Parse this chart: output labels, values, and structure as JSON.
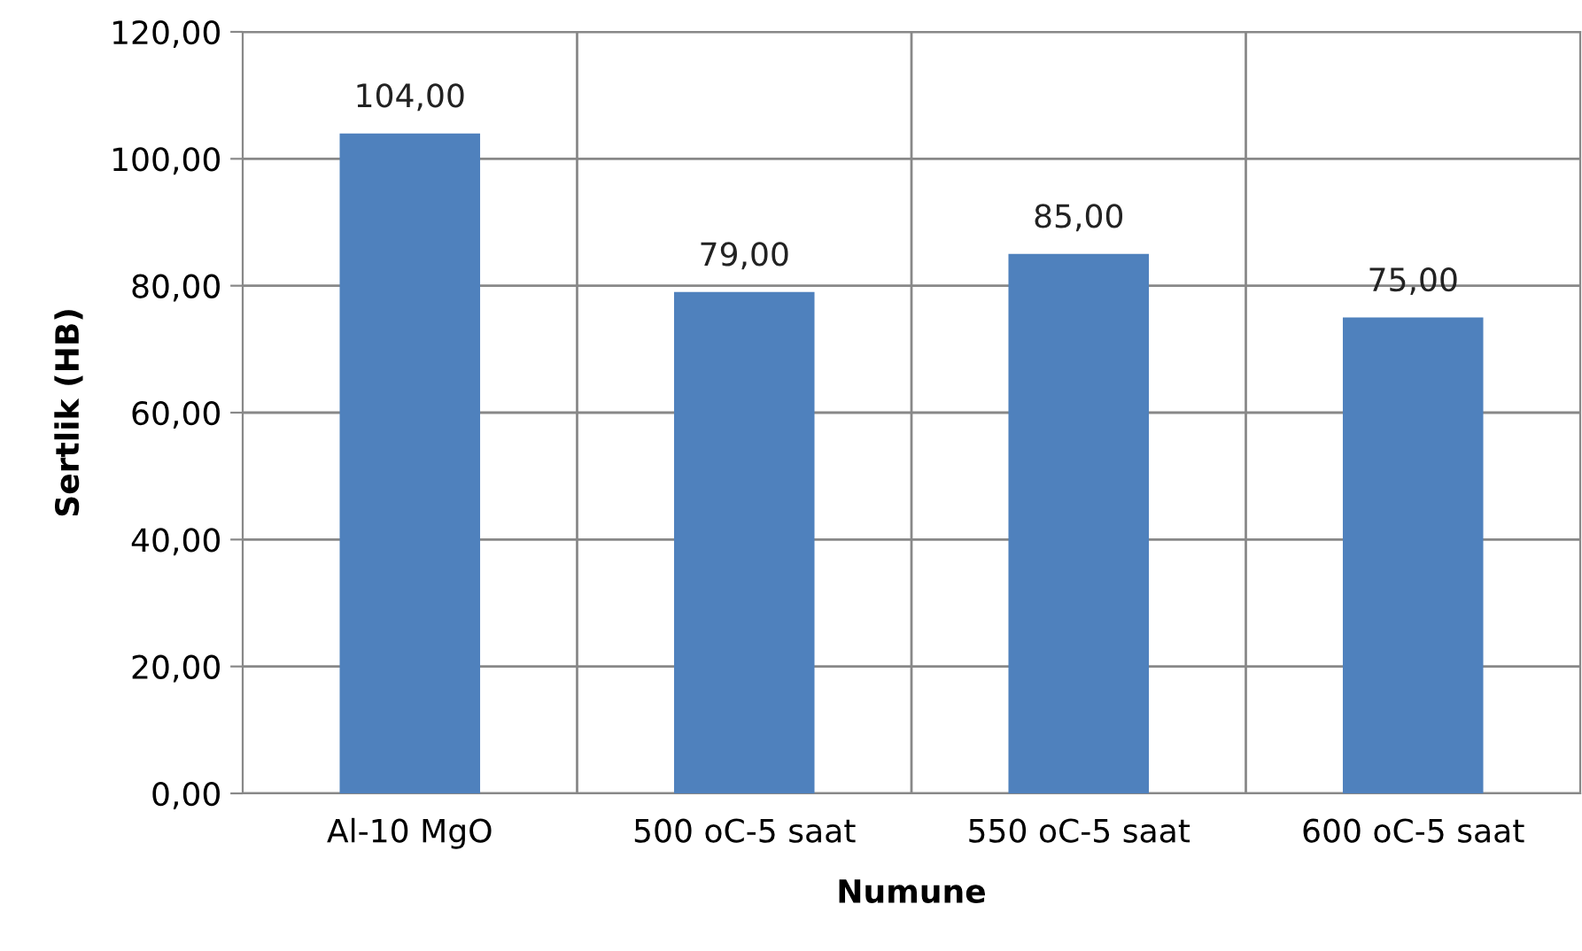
{
  "chart_data": {
    "type": "bar",
    "xlabel": "Numune",
    "ylabel": "Sertlik (HB)",
    "categories": [
      "Al-10 MgO",
      "500 oC-5 saat",
      "550 oC-5 saat",
      "600 oC-5 saat"
    ],
    "values": [
      104,
      79,
      85,
      75
    ],
    "color": "#4f81bd",
    "value_labels": [
      "104,00",
      "79,00",
      "85,00",
      "75,00"
    ],
    "ylim": [
      0,
      120
    ],
    "yticks": [
      {
        "value": 0,
        "label": "0,00"
      },
      {
        "value": 20,
        "label": "20,00"
      },
      {
        "value": 40,
        "label": "40,00"
      },
      {
        "value": 60,
        "label": "60,00"
      },
      {
        "value": 80,
        "label": "80,00"
      },
      {
        "value": 100,
        "label": "100,00"
      },
      {
        "value": 120,
        "label": "120,00"
      }
    ],
    "grid": true,
    "legend": false
  }
}
